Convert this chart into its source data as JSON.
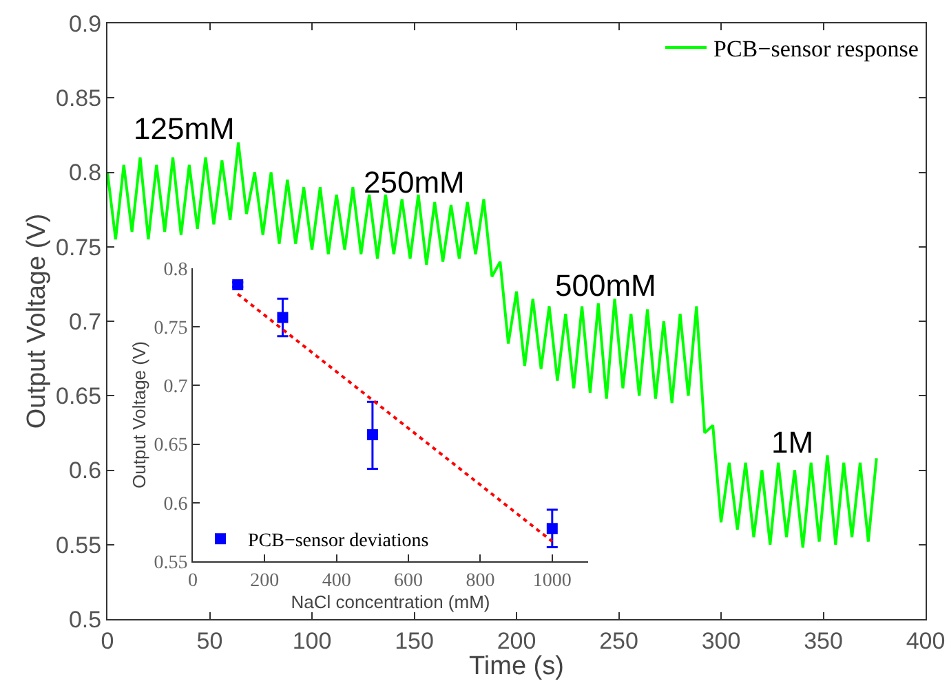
{
  "chart_data": [
    {
      "type": "line",
      "xlabel": "Time (s)",
      "ylabel": "Output Voltage (V)",
      "xlim": [
        0,
        400
      ],
      "ylim": [
        0.5,
        0.9
      ],
      "xticks": [
        0,
        50,
        100,
        150,
        200,
        250,
        300,
        350,
        400
      ],
      "yticks": [
        0.5,
        0.55,
        0.6,
        0.65,
        0.7,
        0.75,
        0.8,
        0.85,
        0.9
      ],
      "legend": "top right",
      "series": [
        {
          "name": "PCB−sensor response",
          "color": "#00ff00",
          "x": [
            0,
            4,
            8,
            12,
            16,
            20,
            24,
            28,
            32,
            36,
            40,
            44,
            48,
            52,
            56,
            60,
            64,
            68,
            72,
            76,
            80,
            84,
            88,
            92,
            96,
            100,
            104,
            108,
            112,
            116,
            120,
            124,
            128,
            132,
            136,
            140,
            144,
            148,
            152,
            156,
            160,
            164,
            168,
            172,
            176,
            180,
            184,
            188,
            192,
            196,
            200,
            204,
            208,
            212,
            216,
            220,
            224,
            228,
            232,
            236,
            240,
            244,
            248,
            252,
            256,
            260,
            264,
            268,
            272,
            276,
            280,
            284,
            288,
            292,
            296,
            300,
            304,
            308,
            312,
            316,
            320,
            324,
            328,
            332,
            336,
            340,
            344,
            348,
            352,
            356,
            360,
            364,
            368,
            372,
            376
          ],
          "values": [
            0.8,
            0.755,
            0.805,
            0.76,
            0.81,
            0.755,
            0.805,
            0.76,
            0.81,
            0.758,
            0.805,
            0.762,
            0.81,
            0.765,
            0.808,
            0.768,
            0.82,
            0.772,
            0.8,
            0.758,
            0.8,
            0.752,
            0.795,
            0.752,
            0.79,
            0.748,
            0.79,
            0.745,
            0.785,
            0.748,
            0.79,
            0.745,
            0.785,
            0.742,
            0.785,
            0.745,
            0.782,
            0.742,
            0.785,
            0.738,
            0.78,
            0.74,
            0.778,
            0.742,
            0.78,
            0.745,
            0.782,
            0.73,
            0.74,
            0.685,
            0.72,
            0.67,
            0.715,
            0.668,
            0.71,
            0.66,
            0.705,
            0.655,
            0.71,
            0.652,
            0.712,
            0.648,
            0.715,
            0.655,
            0.705,
            0.65,
            0.708,
            0.648,
            0.7,
            0.645,
            0.705,
            0.65,
            0.71,
            0.625,
            0.63,
            0.565,
            0.605,
            0.56,
            0.605,
            0.555,
            0.6,
            0.55,
            0.605,
            0.555,
            0.6,
            0.548,
            0.605,
            0.552,
            0.61,
            0.55,
            0.605,
            0.555,
            0.605,
            0.552,
            0.608
          ]
        }
      ],
      "annotations": [
        "125mM",
        "250mM",
        "500mM",
        "1M"
      ]
    },
    {
      "type": "scatter",
      "xlabel": "NaCl concentration (mM)",
      "ylabel": "Output Voltage (V)",
      "xlim": [
        0,
        1100
      ],
      "ylim": [
        0.55,
        0.8
      ],
      "xticks": [
        0,
        200,
        400,
        600,
        800,
        1000
      ],
      "yticks": [
        0.55,
        0.6,
        0.65,
        0.7,
        0.75,
        0.8
      ],
      "legend": "bottom left",
      "series": [
        {
          "name": "PCB−sensor deviations",
          "color": "#0000ff",
          "type": "scatter",
          "marker": "square",
          "x": [
            125,
            250,
            500,
            1000
          ],
          "values": [
            0.786,
            0.758,
            0.658,
            0.578
          ],
          "errors": [
            0.002,
            0.016,
            [
              0.629,
              0.686
            ],
            [
              0.562,
              0.594
            ]
          ]
        },
        {
          "color": "#ff0000",
          "type": "line",
          "line_style": "dotted",
          "x": [
            125,
            1000
          ],
          "values": [
            0.778,
            0.567
          ]
        }
      ]
    }
  ]
}
